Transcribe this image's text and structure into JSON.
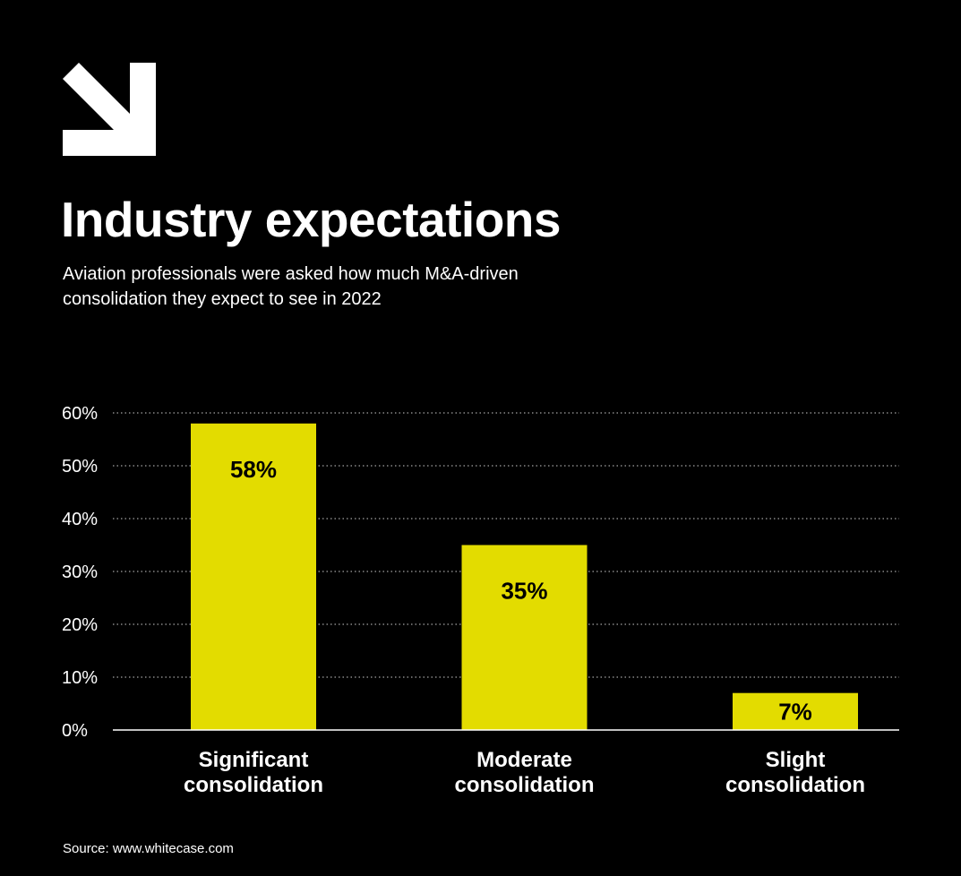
{
  "header": {
    "logo_icon": "arrow-down-right-icon",
    "title": "Industry expectations",
    "subtitle": "Aviation professionals were asked how much M&A-driven consolidation they expect to see in 2022"
  },
  "chart_data": {
    "type": "bar",
    "categories": [
      [
        "Significant",
        "consolidation"
      ],
      [
        "Moderate",
        "consolidation"
      ],
      [
        "Slight",
        "consolidation"
      ]
    ],
    "values": [
      58,
      35,
      7
    ],
    "value_labels": [
      "58%",
      "35%",
      "7%"
    ],
    "title": "",
    "xlabel": "",
    "ylabel": "",
    "ylim": [
      0,
      60
    ],
    "yticks": [
      0,
      10,
      20,
      30,
      40,
      50,
      60
    ],
    "ytick_labels": [
      "0%",
      "10%",
      "20%",
      "30%",
      "40%",
      "50%",
      "60%"
    ],
    "grid": true,
    "legend": "none",
    "colors": {
      "bar": "#e3dc00",
      "background": "#000000",
      "text": "#ffffff",
      "value_text": "#000000",
      "grid": "#ffffff"
    }
  },
  "footer": {
    "source": "Source: www.whitecase.com"
  }
}
